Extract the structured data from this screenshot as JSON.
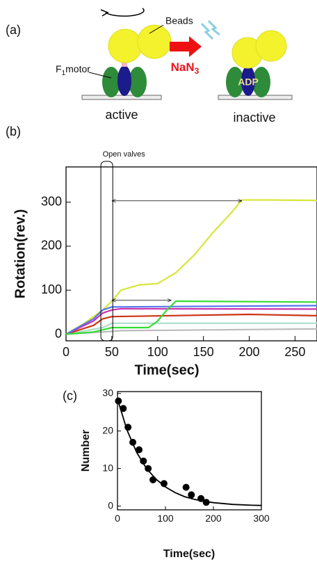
{
  "panel_a": {
    "label": "(a)",
    "beads": "Beads",
    "motor": "F",
    "motor_sub": "1",
    "motor_rest": "motor",
    "reagent": "NaN",
    "reagent_sub": "3",
    "adp": "ADP",
    "state_left": "active",
    "state_right": "inactive"
  },
  "chart_data": [
    {
      "type": "line",
      "panel_label": "(b)",
      "annotation": "Open valves",
      "xlabel": "Time(sec)",
      "ylabel": "Rotation(rev.)",
      "xlim": [
        0,
        274
      ],
      "ylim": [
        -15,
        380
      ],
      "xticks": [
        0,
        50,
        100,
        150,
        200,
        250
      ],
      "yticks": [
        0,
        100,
        200,
        300
      ],
      "valve_window": [
        38,
        51
      ],
      "arrows": [
        {
          "x": [
            50,
            192
          ],
          "y": 303
        },
        {
          "x": [
            50,
            115
          ],
          "y": 77
        }
      ],
      "series": [
        {
          "color": "#d6e63a",
          "x": [
            0,
            20,
            40,
            50,
            60,
            80,
            100,
            120,
            140,
            160,
            180,
            192,
            220,
            274
          ],
          "values": [
            0,
            25,
            55,
            75,
            100,
            112,
            115,
            140,
            180,
            230,
            275,
            305,
            305,
            304
          ]
        },
        {
          "color": "#aadcc8",
          "x": [
            0,
            40,
            50,
            274
          ],
          "values": [
            0,
            15,
            25,
            25
          ]
        },
        {
          "color": "#bbbbbb",
          "x": [
            0,
            40,
            60,
            274
          ],
          "values": [
            0,
            5,
            8,
            12
          ]
        },
        {
          "color": "#cc3311",
          "x": [
            0,
            30,
            40,
            50,
            200,
            274
          ],
          "values": [
            0,
            20,
            35,
            40,
            45,
            42
          ]
        },
        {
          "color": "#cc33aa",
          "x": [
            0,
            30,
            40,
            50,
            60,
            274
          ],
          "values": [
            0,
            30,
            48,
            55,
            58,
            57
          ]
        },
        {
          "color": "#5577ee",
          "x": [
            0,
            30,
            40,
            50,
            274
          ],
          "values": [
            0,
            35,
            55,
            62,
            65
          ]
        },
        {
          "color": "#33dd33",
          "x": [
            0,
            30,
            40,
            50,
            90,
            100,
            110,
            115,
            120,
            274
          ],
          "values": [
            0,
            5,
            10,
            15,
            15,
            30,
            55,
            65,
            75,
            73
          ]
        }
      ]
    },
    {
      "type": "scatter",
      "panel_label": "(c)",
      "xlabel": "Time(sec)",
      "ylabel": "Number",
      "xlim": [
        0,
        300
      ],
      "ylim": [
        -1,
        30.5
      ],
      "xticks": [
        0,
        100,
        200,
        300
      ],
      "yticks": [
        0,
        10,
        20,
        30
      ],
      "color": "#000000",
      "x": [
        2,
        12,
        22,
        32,
        45,
        54,
        64,
        74,
        97,
        143,
        154,
        174,
        185
      ],
      "values": [
        28,
        26,
        21,
        17,
        15,
        12,
        10,
        7,
        6,
        5,
        3,
        2,
        1
      ],
      "fit": {
        "x": [
          0,
          20,
          40,
          60,
          80,
          100,
          120,
          140,
          160,
          180,
          200,
          240,
          280,
          300
        ],
        "values": [
          28.5,
          20.2,
          14.3,
          10.1,
          7.2,
          5.1,
          3.6,
          2.5,
          1.8,
          1.3,
          0.9,
          0.45,
          0.23,
          0.16
        ]
      }
    }
  ]
}
